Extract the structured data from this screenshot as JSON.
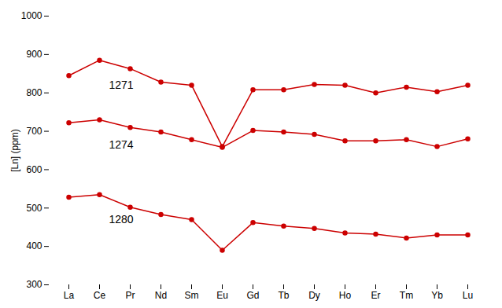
{
  "chart_data": {
    "type": "line",
    "categories": [
      "La",
      "Ce",
      "Pr",
      "Nd",
      "Sm",
      "Eu",
      "Gd",
      "Tb",
      "Dy",
      "Ho",
      "Er",
      "Tm",
      "Yb",
      "Lu"
    ],
    "series": [
      {
        "name": "1271",
        "color": "#cc0000",
        "values": [
          845,
          885,
          863,
          828,
          820,
          660,
          808,
          808,
          822,
          820,
          800,
          815,
          803,
          820
        ]
      },
      {
        "name": "1274",
        "color": "#cc0000",
        "values": [
          722,
          730,
          710,
          698,
          678,
          658,
          702,
          698,
          692,
          675,
          675,
          678,
          660,
          680
        ]
      },
      {
        "name": "1280",
        "color": "#cc0000",
        "values": [
          528,
          535,
          502,
          483,
          470,
          390,
          462,
          453,
          447,
          435,
          432,
          422,
          430,
          430
        ]
      }
    ],
    "ylabel": "[Ln] (ppm)",
    "ylim": [
      300,
      1000
    ],
    "yticks": [
      300,
      400,
      500,
      600,
      700,
      800,
      900,
      1000
    ],
    "marker": "circle",
    "grid": false
  }
}
